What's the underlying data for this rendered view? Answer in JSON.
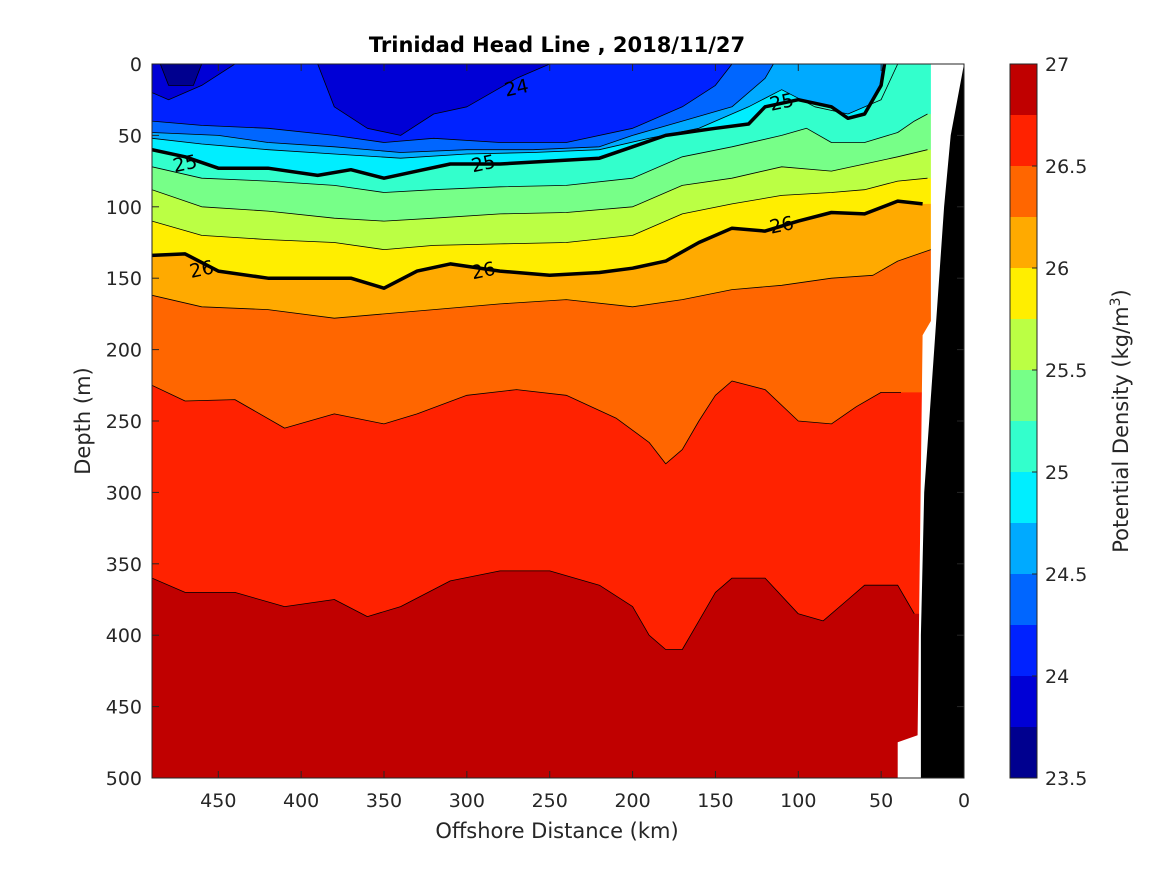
{
  "chart_data": {
    "type": "heatmap",
    "subtype": "filled-contour",
    "title": "Trinidad Head Line , 2018/11/27",
    "xlabel": "Offshore Distance (km)",
    "ylabel": "Depth (m)",
    "xlim": [
      490,
      0
    ],
    "xaxis_reversed": true,
    "ylim": [
      0,
      500
    ],
    "yaxis_reversed": true,
    "xticks": [
      "450",
      "400",
      "350",
      "300",
      "250",
      "200",
      "150",
      "100",
      "50",
      "0"
    ],
    "yticks": [
      "0",
      "50",
      "100",
      "150",
      "200",
      "250",
      "300",
      "350",
      "400",
      "450",
      "500"
    ],
    "colorbar": {
      "label": "Potential Density (kg/m",
      "label_superscript": "3",
      "label_close": ")",
      "range": [
        23.5,
        27
      ],
      "ticks": [
        "27",
        "26.5",
        "26",
        "25.5",
        "25",
        "24.5",
        "24",
        "23.5"
      ]
    },
    "levels": [
      23.5,
      23.75,
      24,
      24.25,
      24.5,
      24.75,
      25,
      25.25,
      25.5,
      25.75,
      26,
      26.25,
      26.5,
      26.75,
      27
    ],
    "level_colors": [
      "#00008f",
      "#0000d6",
      "#0022ff",
      "#0066ff",
      "#00aaff",
      "#00eeff",
      "#33ffcc",
      "#77ff88",
      "#bbff44",
      "#ffee00",
      "#ffaa00",
      "#ff6600",
      "#ff2200",
      "#c00000"
    ],
    "contours": [
      {
        "level": 23.75,
        "depth_by_distance": [
          [
            485,
            0
          ],
          [
            480,
            15
          ],
          [
            465,
            15
          ],
          [
            460,
            0
          ]
        ]
      },
      {
        "level": 24,
        "depth_by_distance": [
          [
            490,
            20
          ],
          [
            480,
            25
          ],
          [
            460,
            15
          ],
          [
            440,
            0
          ]
        ]
      },
      {
        "level": 24,
        "depth_by_distance": [
          [
            390,
            0
          ],
          [
            380,
            30
          ],
          [
            360,
            45
          ],
          [
            340,
            50
          ],
          [
            320,
            35
          ],
          [
            300,
            30
          ],
          [
            270,
            10
          ],
          [
            250,
            0
          ]
        ]
      },
      {
        "level": 24.25,
        "depth_by_distance": [
          [
            490,
            40
          ],
          [
            460,
            43
          ],
          [
            420,
            45
          ],
          [
            380,
            50
          ],
          [
            350,
            55
          ],
          [
            320,
            52
          ],
          [
            280,
            55
          ],
          [
            240,
            55
          ],
          [
            200,
            45
          ],
          [
            170,
            30
          ],
          [
            150,
            15
          ],
          [
            140,
            0
          ]
        ]
      },
      {
        "level": 24.5,
        "depth_by_distance": [
          [
            490,
            48
          ],
          [
            450,
            50
          ],
          [
            420,
            55
          ],
          [
            380,
            58
          ],
          [
            340,
            62
          ],
          [
            300,
            60
          ],
          [
            260,
            60
          ],
          [
            220,
            58
          ],
          [
            200,
            50
          ],
          [
            170,
            40
          ],
          [
            140,
            30
          ],
          [
            120,
            10
          ],
          [
            115,
            0
          ]
        ]
      },
      {
        "level": 24.75,
        "depth_by_distance": [
          [
            490,
            52
          ],
          [
            460,
            56
          ],
          [
            420,
            60
          ],
          [
            380,
            63
          ],
          [
            340,
            66
          ],
          [
            300,
            63
          ],
          [
            260,
            62
          ],
          [
            220,
            60
          ],
          [
            190,
            52
          ],
          [
            160,
            45
          ],
          [
            130,
            30
          ],
          [
            110,
            18
          ],
          [
            90,
            30
          ],
          [
            70,
            35
          ],
          [
            50,
            25
          ],
          [
            40,
            0
          ]
        ]
      },
      {
        "level": 25,
        "labeled": true,
        "depth_by_distance": [
          [
            490,
            60
          ],
          [
            470,
            65
          ],
          [
            450,
            73
          ],
          [
            420,
            73
          ],
          [
            390,
            78
          ],
          [
            370,
            74
          ],
          [
            350,
            80
          ],
          [
            330,
            75
          ],
          [
            310,
            70
          ],
          [
            280,
            70
          ],
          [
            250,
            68
          ],
          [
            220,
            66
          ],
          [
            200,
            58
          ],
          [
            180,
            50
          ],
          [
            150,
            45
          ],
          [
            130,
            42
          ],
          [
            120,
            30
          ],
          [
            100,
            25
          ],
          [
            80,
            30
          ],
          [
            70,
            38
          ],
          [
            60,
            35
          ],
          [
            50,
            15
          ],
          [
            48,
            0
          ]
        ]
      },
      {
        "level": 25.25,
        "depth_by_distance": [
          [
            490,
            72
          ],
          [
            460,
            80
          ],
          [
            420,
            82
          ],
          [
            380,
            85
          ],
          [
            350,
            90
          ],
          [
            320,
            88
          ],
          [
            280,
            86
          ],
          [
            240,
            85
          ],
          [
            200,
            80
          ],
          [
            170,
            65
          ],
          [
            140,
            58
          ],
          [
            110,
            50
          ],
          [
            95,
            45
          ],
          [
            80,
            55
          ],
          [
            60,
            55
          ],
          [
            40,
            48
          ],
          [
            30,
            40
          ],
          [
            22,
            35
          ]
        ]
      },
      {
        "level": 25.5,
        "depth_by_distance": [
          [
            490,
            88
          ],
          [
            460,
            100
          ],
          [
            420,
            103
          ],
          [
            380,
            108
          ],
          [
            350,
            110
          ],
          [
            320,
            108
          ],
          [
            280,
            105
          ],
          [
            240,
            104
          ],
          [
            200,
            100
          ],
          [
            170,
            85
          ],
          [
            140,
            80
          ],
          [
            110,
            72
          ],
          [
            80,
            75
          ],
          [
            60,
            70
          ],
          [
            40,
            65
          ],
          [
            22,
            60
          ]
        ]
      },
      {
        "level": 25.75,
        "depth_by_distance": [
          [
            490,
            110
          ],
          [
            460,
            120
          ],
          [
            420,
            123
          ],
          [
            380,
            125
          ],
          [
            350,
            130
          ],
          [
            320,
            127
          ],
          [
            280,
            126
          ],
          [
            240,
            125
          ],
          [
            200,
            120
          ],
          [
            170,
            105
          ],
          [
            140,
            98
          ],
          [
            110,
            92
          ],
          [
            80,
            90
          ],
          [
            60,
            88
          ],
          [
            40,
            82
          ],
          [
            22,
            80
          ]
        ]
      },
      {
        "level": 26,
        "labeled": true,
        "depth_by_distance": [
          [
            490,
            134
          ],
          [
            470,
            133
          ],
          [
            450,
            145
          ],
          [
            420,
            150
          ],
          [
            390,
            150
          ],
          [
            370,
            150
          ],
          [
            350,
            157
          ],
          [
            330,
            145
          ],
          [
            310,
            140
          ],
          [
            280,
            145
          ],
          [
            250,
            148
          ],
          [
            220,
            146
          ],
          [
            200,
            143
          ],
          [
            180,
            138
          ],
          [
            160,
            125
          ],
          [
            140,
            115
          ],
          [
            120,
            117
          ],
          [
            100,
            110
          ],
          [
            80,
            104
          ],
          [
            60,
            105
          ],
          [
            40,
            96
          ],
          [
            25,
            98
          ]
        ]
      },
      {
        "level": 26.25,
        "depth_by_distance": [
          [
            490,
            162
          ],
          [
            460,
            170
          ],
          [
            420,
            172
          ],
          [
            380,
            178
          ],
          [
            350,
            175
          ],
          [
            320,
            172
          ],
          [
            280,
            168
          ],
          [
            240,
            165
          ],
          [
            200,
            170
          ],
          [
            170,
            165
          ],
          [
            140,
            158
          ],
          [
            110,
            155
          ],
          [
            80,
            150
          ],
          [
            55,
            148
          ],
          [
            40,
            138
          ],
          [
            20,
            130
          ]
        ]
      },
      {
        "level": 26.5,
        "depth_by_distance": [
          [
            490,
            225
          ],
          [
            470,
            236
          ],
          [
            440,
            235
          ],
          [
            410,
            255
          ],
          [
            380,
            245
          ],
          [
            350,
            252
          ],
          [
            330,
            245
          ],
          [
            300,
            232
          ],
          [
            270,
            228
          ],
          [
            240,
            232
          ],
          [
            210,
            248
          ],
          [
            190,
            265
          ],
          [
            180,
            280
          ],
          [
            170,
            270
          ],
          [
            160,
            250
          ],
          [
            150,
            232
          ],
          [
            140,
            222
          ],
          [
            120,
            228
          ],
          [
            100,
            250
          ],
          [
            80,
            252
          ],
          [
            65,
            240
          ],
          [
            50,
            230
          ],
          [
            38,
            230
          ]
        ]
      },
      {
        "level": 26.75,
        "depth_by_distance": [
          [
            490,
            360
          ],
          [
            470,
            370
          ],
          [
            440,
            370
          ],
          [
            410,
            380
          ],
          [
            380,
            375
          ],
          [
            360,
            387
          ],
          [
            340,
            380
          ],
          [
            310,
            362
          ],
          [
            280,
            355
          ],
          [
            250,
            355
          ],
          [
            220,
            365
          ],
          [
            200,
            380
          ],
          [
            190,
            400
          ],
          [
            180,
            410
          ],
          [
            170,
            410
          ],
          [
            160,
            390
          ],
          [
            150,
            370
          ],
          [
            140,
            360
          ],
          [
            120,
            360
          ],
          [
            100,
            385
          ],
          [
            85,
            390
          ],
          [
            70,
            375
          ],
          [
            60,
            365
          ],
          [
            40,
            365
          ],
          [
            35,
            375
          ],
          [
            30,
            385
          ]
        ]
      }
    ],
    "contour_labels": [
      {
        "text": "24",
        "distance": 270,
        "depth": 17
      },
      {
        "text": "25",
        "distance": 470,
        "depth": 70
      },
      {
        "text": "25",
        "distance": 290,
        "depth": 70
      },
      {
        "text": "25",
        "distance": 110,
        "depth": 27
      },
      {
        "text": "26",
        "distance": 460,
        "depth": 144
      },
      {
        "text": "26",
        "distance": 290,
        "depth": 145
      },
      {
        "text": "26",
        "distance": 110,
        "depth": 113
      }
    ],
    "seafloor_mask": {
      "color": "#000000",
      "edge_by_depth": [
        [
          0,
          0
        ],
        [
          50,
          8
        ],
        [
          100,
          12
        ],
        [
          200,
          18
        ],
        [
          300,
          24
        ],
        [
          400,
          26
        ],
        [
          500,
          26
        ]
      ]
    },
    "no_data_region": {
      "color": "#ffffff",
      "edge_by_depth": [
        [
          0,
          20
        ],
        [
          180,
          20
        ],
        [
          190,
          25
        ],
        [
          470,
          28
        ],
        [
          475,
          40
        ],
        [
          500,
          40
        ]
      ]
    }
  }
}
